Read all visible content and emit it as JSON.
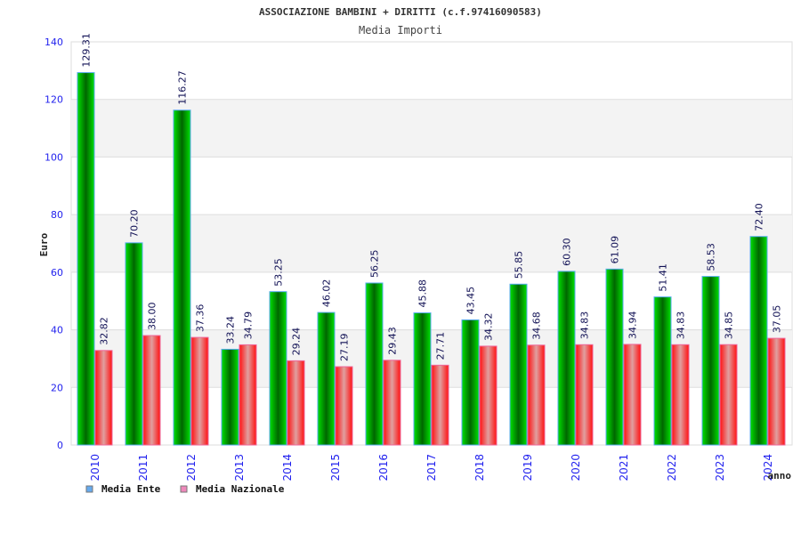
{
  "chart_data": {
    "type": "bar",
    "title": "ASSOCIAZIONE BAMBINI + DIRITTI (c.f.97416090583)",
    "subtitle": "Media Importi",
    "xlabel": "anno",
    "ylabel": "Euro",
    "ylim": [
      0,
      140
    ],
    "yticks": [
      "0",
      "20",
      "40",
      "60",
      "80",
      "100",
      "120",
      "140"
    ],
    "categories": [
      "2010",
      "2011",
      "2012",
      "2013",
      "2014",
      "2015",
      "2016",
      "2017",
      "2018",
      "2019",
      "2020",
      "2021",
      "2022",
      "2023",
      "2024"
    ],
    "series": [
      {
        "name": "Media Ente",
        "color": "#00aa00",
        "values": [
          129.31,
          70.2,
          116.27,
          33.24,
          53.25,
          46.02,
          56.25,
          45.88,
          43.45,
          55.85,
          60.3,
          61.09,
          51.41,
          58.53,
          72.4
        ],
        "labels": [
          "129.31",
          "70.20",
          "116.27",
          "33.24",
          "53.25",
          "46.02",
          "56.25",
          "45.88",
          "43.45",
          "55.85",
          "60.30",
          "61.09",
          "51.41",
          "58.53",
          "72.40"
        ]
      },
      {
        "name": "Media Nazionale",
        "color": "#ee2222",
        "values": [
          32.82,
          38.0,
          37.36,
          34.79,
          29.24,
          27.19,
          29.43,
          27.71,
          34.32,
          34.68,
          34.83,
          34.94,
          34.83,
          34.85,
          37.05
        ],
        "labels": [
          "32.82",
          "38.00",
          "37.36",
          "34.79",
          "29.24",
          "27.19",
          "29.43",
          "27.71",
          "34.32",
          "34.68",
          "34.83",
          "34.94",
          "34.83",
          "34.85",
          "37.05"
        ]
      }
    ],
    "legend_placement": "bottom-left",
    "legend_colors": [
      "#66aaee",
      "#ee88bb"
    ],
    "grid": true
  }
}
